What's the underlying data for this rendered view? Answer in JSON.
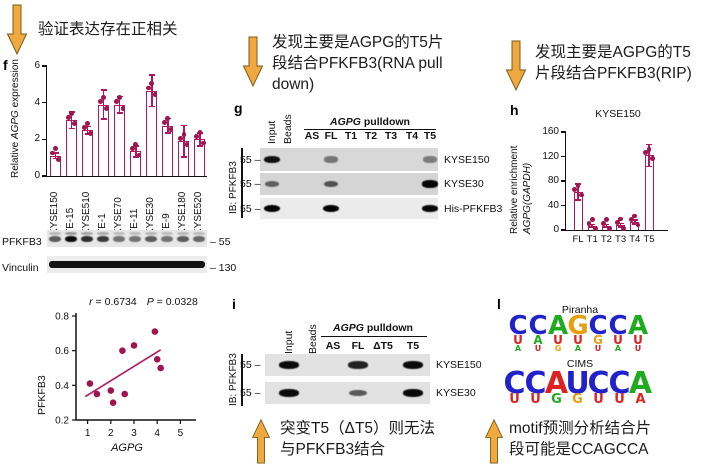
{
  "colors": {
    "crimson": "#b1175c",
    "dot": "#9e1550",
    "arrow_fill": "#efa93f",
    "arrow_stroke": "#7a5a15",
    "logo_blue": "#2222cc",
    "logo_green": "#1faa1f",
    "logo_orange": "#e6a00f",
    "logo_red": "#dd2222"
  },
  "annotations": {
    "top_left": {
      "text": "验证表达存在正相关"
    },
    "mid_top": {
      "l1": "发现主要是AGPG的T5片",
      "l2": "段结合PFKFB3(RNA pull",
      "l3": "down)"
    },
    "right_top": {
      "l1": "发现主要是AGPG的T5",
      "l2": "片段结合PFKFB3(RIP)"
    },
    "mid_bottom": {
      "l1": "突变T5（ΔT5）则无法",
      "l2": "与PFKFB3结合"
    },
    "right_bottom": {
      "l1": "motif预测分析结合片",
      "l2": "段可能是CCAGCCA"
    }
  },
  "panel_f": {
    "label": "f",
    "ylabel_pre": "Relative ",
    "ylabel_gene": "AGPG",
    "ylabel_post": " expression",
    "blot": {
      "rows": [
        {
          "label": "PFKFB3",
          "marker": "– 55"
        },
        {
          "label": "Vinculin",
          "marker": "– 130"
        }
      ]
    },
    "scatter": {
      "r_label": "r",
      "r_text": " = 0.6734",
      "p_label": "P",
      "p_text": " = 0.0328",
      "ylabel": "PFKFB3",
      "xlabel": "AGPG"
    }
  },
  "panel_g": {
    "label": "g",
    "rot_lanes": [
      "Input",
      "Beads"
    ],
    "pulldown_gene": "AGPG",
    "pulldown_text": " pulldown",
    "lanes": [
      "AS",
      "FL",
      "T1",
      "T2",
      "T3",
      "T4",
      "T5"
    ],
    "ib_label": "IB: PFKFB3",
    "marker": "55 –",
    "rows": [
      {
        "name": "KYSE150",
        "bands": {
          "Input": 0.92,
          "FL": 0.45,
          "T5": 0.42
        }
      },
      {
        "name": "KYSE30",
        "bands": {
          "Input": 0.55,
          "FL": 0.62,
          "T5": 0.97
        }
      },
      {
        "name": "His-PFKFB3",
        "bands": {
          "Input": 1,
          "FL": 1,
          "T5": 0.97
        }
      }
    ]
  },
  "panel_h": {
    "label": "h"
  },
  "panel_i": {
    "label": "i",
    "rot_lanes": [
      "Input",
      "Beads"
    ],
    "pulldown_gene": "AGPG",
    "pulldown_text": " pulldown",
    "lanes": [
      "AS",
      "FL",
      "ΔT5",
      "T5"
    ],
    "ib_label": "IB: PFKFB3",
    "marker": "55 –",
    "rows": [
      {
        "name": "KYSE150",
        "bands": {
          "Input": 0.95,
          "FL": 0.85,
          "T5": 0.95
        }
      },
      {
        "name": "KYSE30",
        "bands": {
          "Input": 0.95,
          "FL": 0.6,
          "T5": 0.95
        }
      }
    ]
  },
  "panel_l": {
    "label": "l",
    "logos": [
      {
        "title": "Piranha",
        "columns": [
          [
            [
              "C",
              "blue"
            ],
            [
              "U",
              "red"
            ],
            [
              "A",
              "green"
            ]
          ],
          [
            [
              "C",
              "blue"
            ],
            [
              "A",
              "green"
            ],
            [
              "U",
              "red"
            ]
          ],
          [
            [
              "A",
              "green"
            ],
            [
              "U",
              "red"
            ],
            [
              "G",
              "orange"
            ]
          ],
          [
            [
              "G",
              "orange"
            ],
            [
              "U",
              "red"
            ],
            [
              "A",
              "green"
            ]
          ],
          [
            [
              "C",
              "blue"
            ],
            [
              "G",
              "orange"
            ],
            [
              "U",
              "red"
            ]
          ],
          [
            [
              "C",
              "blue"
            ],
            [
              "U",
              "red"
            ],
            [
              "A",
              "green"
            ]
          ],
          [
            [
              "A",
              "green"
            ],
            [
              "U",
              "red"
            ],
            [
              "U",
              "red"
            ]
          ]
        ]
      },
      {
        "title": "CIMS",
        "columns": [
          [
            [
              "C",
              "blue"
            ],
            [
              "U",
              "red"
            ]
          ],
          [
            [
              "C",
              "blue"
            ],
            [
              "U",
              "red"
            ]
          ],
          [
            [
              "A",
              "red"
            ],
            [
              "G",
              "green"
            ]
          ],
          [
            [
              "U",
              "blue"
            ],
            [
              "G",
              "orange"
            ]
          ],
          [
            [
              "C",
              "blue"
            ],
            [
              "U",
              "red"
            ]
          ],
          [
            [
              "C",
              "blue"
            ],
            [
              "U",
              "red"
            ]
          ],
          [
            [
              "A",
              "green"
            ],
            [
              "A",
              "red"
            ]
          ]
        ]
      }
    ]
  },
  "chart_data": [
    {
      "id": "f_bar",
      "type": "bar",
      "title": "",
      "xlabel": "",
      "ylabel": "Relative AGPG expression",
      "categories": [
        "KYSE150",
        "TE-15",
        "KYSE510",
        "TE-1",
        "KYSE70",
        "TE-11",
        "KYSE30",
        "TE-9",
        "KYSE180",
        "KYSE520"
      ],
      "values": [
        1.1,
        3.05,
        2.5,
        3.9,
        3.9,
        1.35,
        4.65,
        2.75,
        1.9,
        2.0
      ],
      "errors": [
        0.15,
        0.45,
        0.2,
        0.8,
        0.45,
        0.3,
        0.85,
        0.4,
        0.85,
        0.35
      ],
      "ylim": [
        0,
        6
      ],
      "yticks": [
        0,
        2,
        4,
        6
      ],
      "grid": false,
      "legend": "none"
    },
    {
      "id": "fp_scatter",
      "type": "scatter",
      "xlabel": "AGPG",
      "ylabel": "PFKFB3",
      "annotation": "r = 0.6734  P = 0.0328",
      "points": [
        [
          1.1,
          0.41
        ],
        [
          1.4,
          0.35
        ],
        [
          2.0,
          0.37
        ],
        [
          2.1,
          0.3
        ],
        [
          2.5,
          0.6
        ],
        [
          2.6,
          0.35
        ],
        [
          3.0,
          0.63
        ],
        [
          3.9,
          0.71
        ],
        [
          4.0,
          0.55
        ],
        [
          4.15,
          0.5
        ]
      ],
      "trendline": [
        [
          0.9,
          0.335
        ],
        [
          4.15,
          0.605
        ]
      ],
      "xlim": [
        0.5,
        5.5
      ],
      "ylim": [
        0.2,
        0.8
      ],
      "xticks": [
        1,
        2,
        3,
        4,
        5
      ],
      "yticks": [
        0.2,
        0.4,
        0.6,
        0.8
      ],
      "grid": false
    },
    {
      "id": "h_bar",
      "type": "bar",
      "title": "KYSE150",
      "ylabel": "Relative enrichment AGPG(GAPDH)",
      "ylabel_line1": "Relative enrichment",
      "ylabel_line2": "AGPG(GAPDH)",
      "categories": [
        "FL",
        "T1",
        "T2",
        "T3",
        "T4",
        "T5"
      ],
      "values": [
        62,
        7,
        7,
        8,
        13,
        122
      ],
      "errors": [
        13,
        2,
        2,
        3,
        3,
        18
      ],
      "ylim": [
        0,
        160
      ],
      "yticks": [
        0,
        40,
        80,
        120,
        160
      ],
      "grid": false,
      "legend": "none"
    }
  ]
}
